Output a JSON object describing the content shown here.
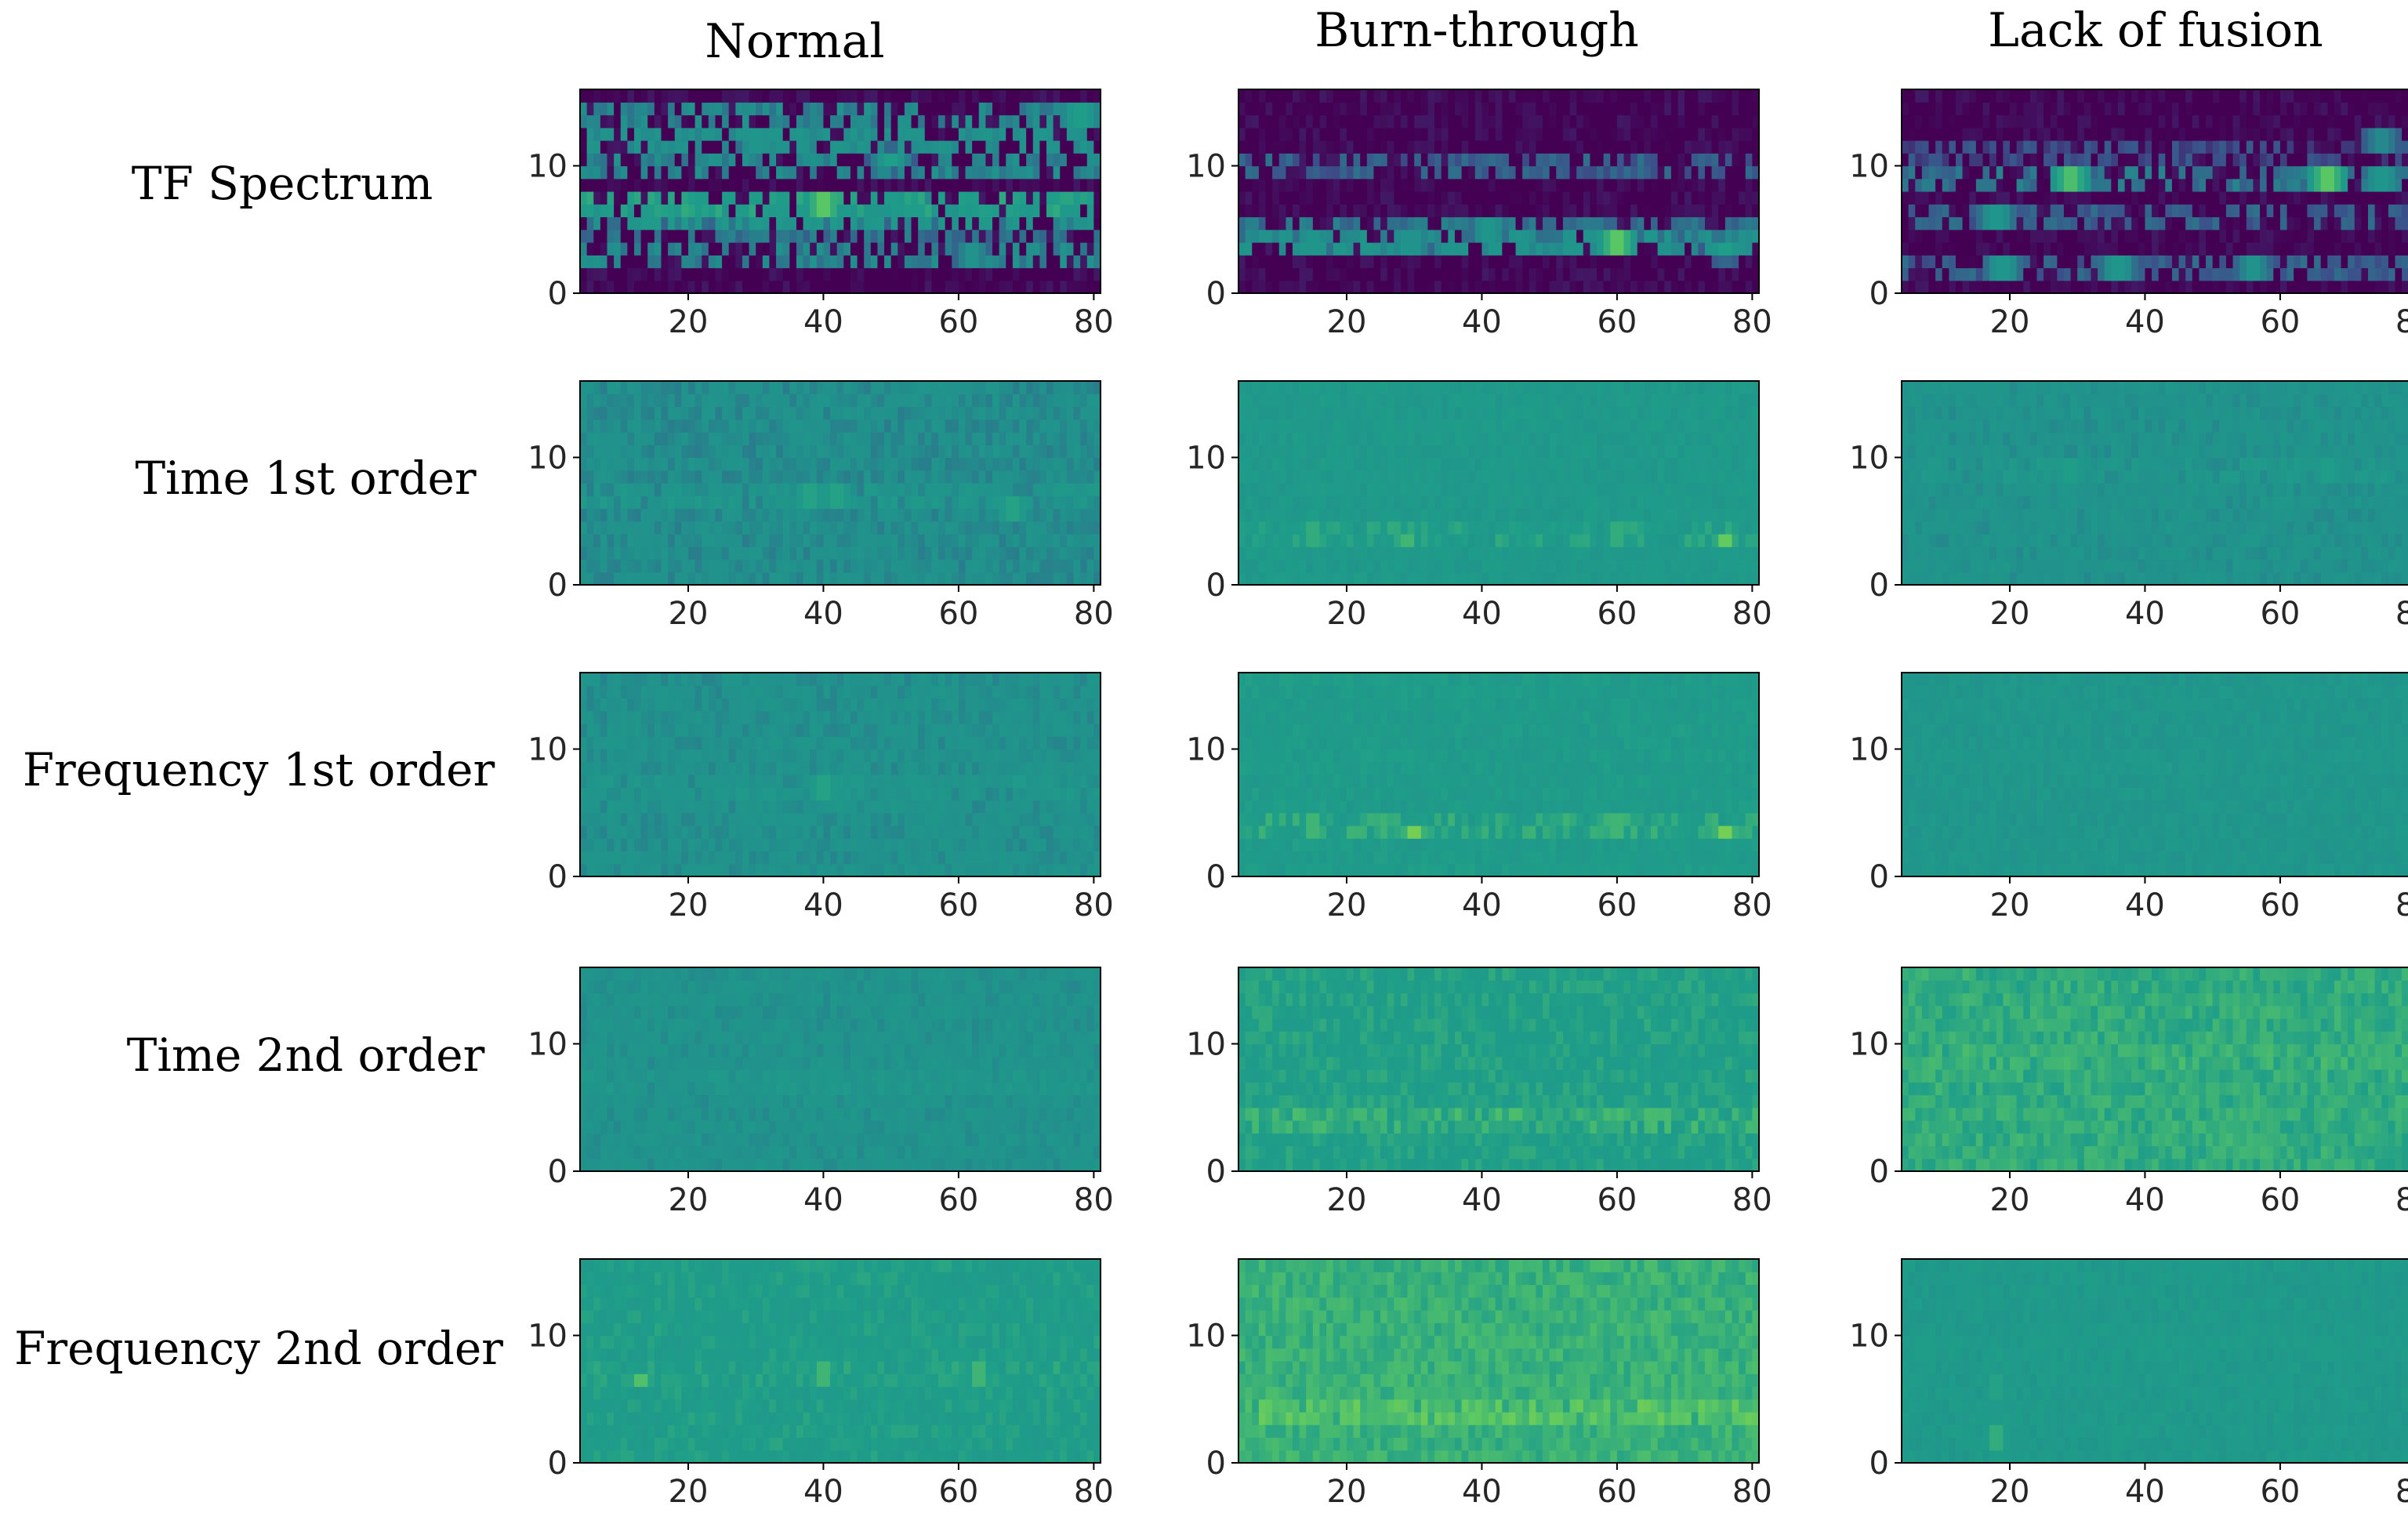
{
  "chart_data": {
    "type": "heatmap",
    "columns": [
      "Normal",
      "Burn-through",
      "Lack of fusion"
    ],
    "rows": [
      "TF Spectrum",
      "Time 1st order",
      "Frequency 1st order",
      "Time 2nd order",
      "Frequency 2nd order"
    ],
    "x_ticks": [
      "20",
      "40",
      "60",
      "80"
    ],
    "y_ticks": [
      "0",
      "10"
    ],
    "x_tick_values": [
      20,
      40,
      60,
      80
    ],
    "y_tick_values": [
      0,
      10
    ],
    "xlim": [
      4,
      81
    ],
    "ylim": [
      0,
      16
    ],
    "colormap": [
      "#440154",
      "#3b528b",
      "#21918c",
      "#1f9e89",
      "#5ec962",
      "#a0da39",
      "#fde725"
    ],
    "panels": [
      {
        "row": "TF Spectrum",
        "col": "Normal",
        "base": 0.0,
        "bands": [
          {
            "y": 7,
            "v": 0.55
          },
          {
            "y": 6,
            "v": 0.45
          },
          {
            "y": 12,
            "v": 0.4
          },
          {
            "y": 10,
            "v": 0.35
          },
          {
            "y": 14,
            "v": 0.35
          },
          {
            "y": 3,
            "v": 0.35
          },
          {
            "y": 5,
            "v": 0.3
          }
        ],
        "hotspots": [
          {
            "x": 40,
            "y": 7,
            "v": 0.95
          },
          {
            "x": 53,
            "y": 7,
            "v": 0.7
          },
          {
            "x": 50,
            "y": 10.5,
            "v": 0.55
          },
          {
            "x": 30,
            "y": 12,
            "v": 0.55
          },
          {
            "x": 62,
            "y": 3,
            "v": 0.5
          },
          {
            "x": 78,
            "y": 14,
            "v": 0.7
          }
        ]
      },
      {
        "row": "TF Spectrum",
        "col": "Burn-through",
        "base": 0.0,
        "bands": [
          {
            "y": 4,
            "v": 0.4
          },
          {
            "y": 5,
            "v": 0.3
          },
          {
            "y": 10,
            "v": 0.25
          }
        ],
        "hotspots": [
          {
            "x": 60,
            "y": 4,
            "v": 0.95
          },
          {
            "x": 15,
            "y": 4,
            "v": 0.55
          },
          {
            "x": 30,
            "y": 4,
            "v": 0.5
          },
          {
            "x": 41,
            "y": 5,
            "v": 0.55
          },
          {
            "x": 76,
            "y": 3.5,
            "v": 0.55
          }
        ]
      },
      {
        "row": "TF Spectrum",
        "col": "Lack of fusion",
        "base": 0.0,
        "bands": [
          {
            "y": 9,
            "v": 0.3
          },
          {
            "y": 6,
            "v": 0.25
          },
          {
            "y": 2,
            "v": 0.25
          },
          {
            "y": 11,
            "v": 0.2
          }
        ],
        "hotspots": [
          {
            "x": 29,
            "y": 9,
            "v": 0.9
          },
          {
            "x": 67,
            "y": 9,
            "v": 0.95
          },
          {
            "x": 18,
            "y": 6,
            "v": 0.55
          },
          {
            "x": 19,
            "y": 2,
            "v": 0.55
          },
          {
            "x": 36,
            "y": 2,
            "v": 0.55
          },
          {
            "x": 56,
            "y": 2,
            "v": 0.5
          },
          {
            "x": 75,
            "y": 9,
            "v": 0.55
          },
          {
            "x": 75,
            "y": 12,
            "v": 0.45
          }
        ]
      },
      {
        "row": "Time 1st order",
        "col": "Normal",
        "base": 0.33,
        "bands": [
          {
            "y": 7,
            "v": 0.45
          }
        ],
        "hotspots": [
          {
            "x": 38,
            "y": 7,
            "v": 0.75
          },
          {
            "x": 42,
            "y": 7,
            "v": 0.75
          },
          {
            "x": 68,
            "y": 6,
            "v": 0.75
          }
        ]
      },
      {
        "row": "Time 1st order",
        "col": "Burn-through",
        "base": 0.44,
        "bands": [
          {
            "y": 4,
            "v": 0.55
          }
        ],
        "hotspots": [
          {
            "x": 15,
            "y": 4,
            "v": 0.8
          },
          {
            "x": 60,
            "y": 4,
            "v": 0.8
          },
          {
            "x": 76,
            "y": 3.5,
            "v": 0.75
          },
          {
            "x": 29,
            "y": 3.5,
            "v": 0.65
          }
        ]
      },
      {
        "row": "Time 1st order",
        "col": "Lack of fusion",
        "base": 0.36,
        "bands": [
          {
            "y": 9,
            "v": 0.45
          }
        ],
        "hotspots": [
          {
            "x": 29,
            "y": 9,
            "v": 0.7
          },
          {
            "x": 67,
            "y": 9,
            "v": 0.7
          }
        ]
      },
      {
        "row": "Frequency 1st order",
        "col": "Normal",
        "base": 0.35,
        "bands": [
          {
            "y": 7,
            "v": 0.45
          },
          {
            "y": 6,
            "v": 0.42
          }
        ],
        "hotspots": [
          {
            "x": 40,
            "y": 7,
            "v": 0.75
          },
          {
            "x": 54,
            "y": 7,
            "v": 0.6
          }
        ]
      },
      {
        "row": "Frequency 1st order",
        "col": "Burn-through",
        "base": 0.46,
        "bands": [
          {
            "y": 4,
            "v": 0.58
          }
        ],
        "hotspots": [
          {
            "x": 15,
            "y": 4,
            "v": 0.85
          },
          {
            "x": 30,
            "y": 3.5,
            "v": 0.8
          },
          {
            "x": 60,
            "y": 4,
            "v": 0.85
          },
          {
            "x": 76,
            "y": 3.5,
            "v": 0.8
          },
          {
            "x": 41,
            "y": 5,
            "v": 0.7
          }
        ]
      },
      {
        "row": "Frequency 1st order",
        "col": "Lack of fusion",
        "base": 0.4,
        "bands": [
          {
            "y": 9,
            "v": 0.45
          }
        ],
        "hotspots": [
          {
            "x": 67,
            "y": 9,
            "v": 0.6
          },
          {
            "x": 19,
            "y": 2,
            "v": 0.55
          },
          {
            "x": 36,
            "y": 2,
            "v": 0.55
          },
          {
            "x": 18,
            "y": 6,
            "v": 0.55
          }
        ]
      },
      {
        "row": "Time 2nd order",
        "col": "Normal",
        "base": 0.36,
        "bands": [
          {
            "y": 7,
            "v": 0.45
          }
        ],
        "hotspots": [
          {
            "x": 41,
            "y": 7,
            "v": 0.6
          },
          {
            "x": 66,
            "y": 6,
            "v": 0.55
          },
          {
            "x": 29,
            "y": 12,
            "v": 0.5
          }
        ]
      },
      {
        "row": "Time 2nd order",
        "col": "Burn-through",
        "base": 0.5,
        "bands": [
          {
            "y": 4,
            "v": 0.62
          },
          {
            "y": 5,
            "v": 0.55
          }
        ],
        "hotspots": [
          {
            "x": 15,
            "y": 4,
            "v": 0.8
          },
          {
            "x": 60,
            "y": 4,
            "v": 0.8
          },
          {
            "x": 41,
            "y": 5,
            "v": 0.7
          },
          {
            "x": 30,
            "y": 4,
            "v": 0.7
          }
        ]
      },
      {
        "row": "Time 2nd order",
        "col": "Lack of fusion",
        "base": 0.55,
        "bands": [
          {
            "y": 9,
            "v": 0.62
          }
        ],
        "hotspots": [
          {
            "x": 29,
            "y": 9,
            "v": 0.85
          },
          {
            "x": 33,
            "y": 9,
            "v": 0.8
          },
          {
            "x": 67,
            "y": 9,
            "v": 0.85
          },
          {
            "x": 72,
            "y": 9,
            "v": 0.8
          },
          {
            "x": 38,
            "y": 2,
            "v": 0.75
          },
          {
            "x": 75,
            "y": 2,
            "v": 0.7
          }
        ]
      },
      {
        "row": "Frequency 2nd order",
        "col": "Normal",
        "base": 0.48,
        "bands": [
          {
            "y": 7,
            "v": 0.55
          }
        ],
        "hotspots": [
          {
            "x": 40,
            "y": 7,
            "v": 0.85
          },
          {
            "x": 63,
            "y": 7,
            "v": 0.85
          },
          {
            "x": 13,
            "y": 6.5,
            "v": 0.7
          },
          {
            "x": 53,
            "y": 7,
            "v": 0.65
          }
        ]
      },
      {
        "row": "Frequency 2nd order",
        "col": "Burn-through",
        "base": 0.57,
        "bands": [
          {
            "y": 4,
            "v": 0.7
          },
          {
            "y": 3.5,
            "v": 0.65
          },
          {
            "y": 5,
            "v": 0.6
          }
        ],
        "hotspots": [
          {
            "x": 25,
            "y": 4,
            "v": 0.8
          },
          {
            "x": 58,
            "y": 4,
            "v": 0.8
          },
          {
            "x": 45,
            "y": 5,
            "v": 0.75
          },
          {
            "x": 10,
            "y": 4,
            "v": 0.75
          }
        ]
      },
      {
        "row": "Frequency 2nd order",
        "col": "Lack of fusion",
        "base": 0.44,
        "bands": [
          {
            "y": 9,
            "v": 0.5
          }
        ],
        "hotspots": [
          {
            "x": 18,
            "y": 2,
            "v": 0.8
          },
          {
            "x": 18,
            "y": 6,
            "v": 0.75
          },
          {
            "x": 36,
            "y": 2,
            "v": 0.7
          },
          {
            "x": 55,
            "y": 2,
            "v": 0.65
          },
          {
            "x": 67,
            "y": 9,
            "v": 0.7
          },
          {
            "x": 47,
            "y": 9,
            "v": 0.6
          }
        ]
      }
    ]
  }
}
